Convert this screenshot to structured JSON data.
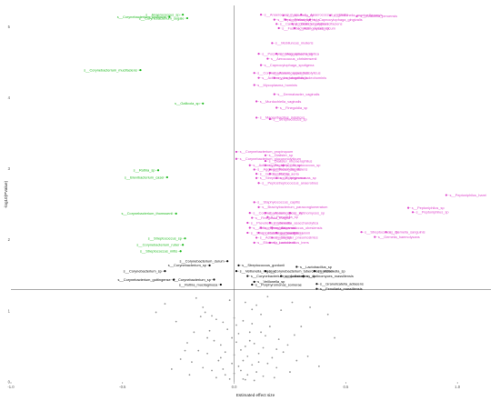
{
  "chart_data": {
    "type": "scatter",
    "title": "",
    "xlabel": "Estimated effect size",
    "ylabel": "-log10(PValue)",
    "xlim": [
      -1.0,
      1.15
    ],
    "ylim": [
      0,
      5.3
    ],
    "x_ticks": [
      -1.0,
      -0.5,
      0.0,
      0.5,
      1.0
    ],
    "x_tick_labels": [
      "-1.0",
      "-0.5",
      "0.0",
      "0.5",
      "1.0"
    ],
    "y_ticks": [
      0,
      1,
      2,
      3,
      4,
      5
    ],
    "y_tick_labels": [
      "0",
      "1",
      "2",
      "3",
      "4",
      "5"
    ],
    "grid": false,
    "reference_lines": [
      {
        "axis": "y",
        "value": 1.3
      },
      {
        "axis": "x",
        "value": 0
      }
    ],
    "colors": {
      "negative": "#22bb22",
      "positive": "#dd44cc",
      "nonsignificant": "#111111",
      "points": "#999999",
      "lines": "#555555"
    },
    "labeled_points": [
      {
        "label": "s__Corynebacterium_fusiforme",
        "x": -0.29,
        "y": 5.14,
        "group": "negative"
      },
      {
        "label": "s__Anaerococcus_sp",
        "x": -0.23,
        "y": 5.17,
        "group": "negative"
      },
      {
        "label": "s__Corynebacterium_segale",
        "x": -0.21,
        "y": 5.12,
        "group": "negative"
      },
      {
        "label": "s__Corynebacterium_mucifaciens",
        "x": -0.42,
        "y": 4.39,
        "group": "negative"
      },
      {
        "label": "s__Gallicola_sp",
        "x": -0.14,
        "y": 3.92,
        "group": "negative"
      },
      {
        "label": "s__Rothia_sp",
        "x": -0.34,
        "y": 2.98,
        "group": "negative"
      },
      {
        "label": "s__Brevibacterium_casei",
        "x": -0.3,
        "y": 2.88,
        "group": "negative"
      },
      {
        "label": "s__Corynebacterium_thomssenii",
        "x": -0.26,
        "y": 2.37,
        "group": "negative"
      },
      {
        "label": "s__Streptococcus_sp",
        "x": -0.22,
        "y": 2.02,
        "group": "negative"
      },
      {
        "label": "s__Corynebacterium_ruber",
        "x": -0.23,
        "y": 1.93,
        "group": "negative"
      },
      {
        "label": "s__Streptococcus_mitis",
        "x": -0.24,
        "y": 1.84,
        "group": "negative"
      },
      {
        "label": "s__Anaerococcus_sp",
        "x": 0.12,
        "y": 5.17,
        "group": "positive"
      },
      {
        "label": "s__Veillonella_sp",
        "x": 0.22,
        "y": 5.16,
        "group": "positive"
      },
      {
        "label": "s__Anaerococcus_vaginalis",
        "x": 0.3,
        "y": 5.17,
        "group": "positive"
      },
      {
        "label": "s__Veillonella_montpellierensis",
        "x": 0.43,
        "y": 5.16,
        "group": "positive"
      },
      {
        "label": "s__Ezakiella_peruensis",
        "x": 0.55,
        "y": 5.15,
        "group": "positive"
      },
      {
        "label": "s__Peptoniphilus_sp",
        "x": 0.18,
        "y": 5.1,
        "group": "positive"
      },
      {
        "label": "s__Prevotella_bivia",
        "x": 0.23,
        "y": 5.1,
        "group": "positive"
      },
      {
        "label": "s__Capnocytophaga_gingivalis",
        "x": 0.34,
        "y": 5.1,
        "group": "positive"
      },
      {
        "label": "s__Campylobacter_ureolyticus",
        "x": 0.19,
        "y": 5.04,
        "group": "positive"
      },
      {
        "label": "s__Dialister_propionicifaciens",
        "x": 0.26,
        "y": 5.04,
        "group": "positive"
      },
      {
        "label": "s__Fusobacterium_periodonticum",
        "x": 0.2,
        "y": 4.98,
        "group": "positive"
      },
      {
        "label": "s__Actinomyces_sp",
        "x": 0.27,
        "y": 4.98,
        "group": "positive"
      },
      {
        "label": "s__Mobiluncus_mulieris",
        "x": 0.17,
        "y": 4.77,
        "group": "positive"
      },
      {
        "label": "s__Porphyromonas_asaccharolytica",
        "x": 0.11,
        "y": 4.62,
        "group": "positive"
      },
      {
        "label": "s__Megasphaera_sp",
        "x": 0.19,
        "y": 4.62,
        "group": "positive"
      },
      {
        "label": "s__Aerococcus_christensenii",
        "x": 0.15,
        "y": 4.55,
        "group": "positive"
      },
      {
        "label": "s__Capnocytophaga_sputigena",
        "x": 0.12,
        "y": 4.46,
        "group": "positive"
      },
      {
        "label": "s__Corynebacterium_appendicis",
        "x": 0.09,
        "y": 4.35,
        "group": "positive"
      },
      {
        "label": "s__Anaerococcus_lactolyticus",
        "x": 0.16,
        "y": 4.35,
        "group": "positive"
      },
      {
        "label": "s__Actinomyces_urogenitalis",
        "x": 0.11,
        "y": 4.28,
        "group": "positive"
      },
      {
        "label": "s__Lactobacillus_coleohominis",
        "x": 0.18,
        "y": 4.28,
        "group": "positive"
      },
      {
        "label": "s__Mycoplasma_hominis",
        "x": 0.09,
        "y": 4.18,
        "group": "positive"
      },
      {
        "label": "s__Dermabacter_vaginalis",
        "x": 0.18,
        "y": 4.05,
        "group": "positive"
      },
      {
        "label": "s__Murdochiella_vaginalis",
        "x": 0.1,
        "y": 3.95,
        "group": "positive"
      },
      {
        "label": "s__Finegoldia_sp",
        "x": 0.19,
        "y": 3.86,
        "group": "positive"
      },
      {
        "label": "s__Mageeibacillus_indolicus",
        "x": 0.1,
        "y": 3.72,
        "group": "positive"
      },
      {
        "label": "s__Streptococcus_sp",
        "x": 0.16,
        "y": 3.7,
        "group": "positive"
      },
      {
        "label": "s__Corynebacterium_propinquum",
        "x": 0.01,
        "y": 3.24,
        "group": "positive"
      },
      {
        "label": "s__Dialister_sp",
        "x": 0.14,
        "y": 3.19,
        "group": "positive"
      },
      {
        "label": "s__Corynebacterium_glucuronolyticum",
        "x": 0.01,
        "y": 3.14,
        "group": "positive"
      },
      {
        "label": "s__Dialister_micraerophilus",
        "x": 0.14,
        "y": 3.11,
        "group": "positive"
      },
      {
        "label": "s__Actinomyces_sp",
        "x": 0.07,
        "y": 3.05,
        "group": "positive"
      },
      {
        "label": "s__Peptoniphilus_sp",
        "x": 0.14,
        "y": 3.05,
        "group": "positive"
      },
      {
        "label": "s__Streptococcus_sp",
        "x": 0.22,
        "y": 3.05,
        "group": "positive"
      },
      {
        "label": "s__Aggregatibacter_segnis",
        "x": 0.09,
        "y": 2.99,
        "group": "positive"
      },
      {
        "label": "s__Prevotella_disiens",
        "x": 0.16,
        "y": 2.99,
        "group": "positive"
      },
      {
        "label": "s__Gardnerella_sp",
        "x": 0.1,
        "y": 2.93,
        "group": "positive"
      },
      {
        "label": "s__Rothia_aeria",
        "x": 0.16,
        "y": 2.93,
        "group": "positive"
      },
      {
        "label": "s__Streptococcus_anginosus",
        "x": 0.1,
        "y": 2.87,
        "group": "positive"
      },
      {
        "label": "s__Porphyromonas_sp",
        "x": 0.19,
        "y": 2.87,
        "group": "positive"
      },
      {
        "label": "s__Peptostreptococcus_anaerobius",
        "x": 0.11,
        "y": 2.8,
        "group": "positive"
      },
      {
        "label": "s__Staphylococcus_capitis",
        "x": 0.09,
        "y": 2.53,
        "group": "positive"
      },
      {
        "label": "s__Brachybacterium_paraconglomeratum",
        "x": 0.11,
        "y": 2.46,
        "group": "positive"
      },
      {
        "label": "s__Corynebacterium_sp",
        "x": 0.07,
        "y": 2.38,
        "group": "positive"
      },
      {
        "label": "s__Anaerococcus_sp",
        "x": 0.14,
        "y": 2.38,
        "group": "positive"
      },
      {
        "label": "s__Actinomyces_sp",
        "x": 0.25,
        "y": 2.38,
        "group": "positive"
      },
      {
        "label": "s__Peptoniphilus_harei",
        "x": 0.95,
        "y": 2.63,
        "group": "positive"
      },
      {
        "label": "s__Finegoldia_magna",
        "x": 0.08,
        "y": 2.31,
        "group": "positive"
      },
      {
        "label": "s__Prevotella_sp",
        "x": 0.15,
        "y": 2.32,
        "group": "positive"
      },
      {
        "label": "s__Peptoniphilus_sp",
        "x": 0.78,
        "y": 2.45,
        "group": "positive"
      },
      {
        "label": "s__Prevotella_intermedia",
        "x": 0.06,
        "y": 2.24,
        "group": "positive"
      },
      {
        "label": "s__Gemella_asaccharolytica",
        "x": 0.16,
        "y": 2.24,
        "group": "positive"
      },
      {
        "label": "s__Peptoniphilus_sp",
        "x": 0.8,
        "y": 2.39,
        "group": "positive"
      },
      {
        "label": "s__Actinomyces_turicensis",
        "x": 0.07,
        "y": 2.17,
        "group": "positive"
      },
      {
        "label": "s__Prevotella_amnii",
        "x": 0.12,
        "y": 2.17,
        "group": "positive"
      },
      {
        "label": "s__Anaerococcus_obesiensis",
        "x": 0.17,
        "y": 2.17,
        "group": "positive"
      },
      {
        "label": "s__Streptococcus_parasanguinis",
        "x": 0.06,
        "y": 2.1,
        "group": "positive"
      },
      {
        "label": "s__Mobiluncus_curtisii",
        "x": 0.11,
        "y": 2.1,
        "group": "positive"
      },
      {
        "label": "s__Sneathia_amnii",
        "x": 0.19,
        "y": 2.1,
        "group": "positive"
      },
      {
        "label": "s__Streptococcus_sp",
        "x": 0.57,
        "y": 2.11,
        "group": "positive"
      },
      {
        "label": "s__Gemella_sanguinis",
        "x": 0.68,
        "y": 2.11,
        "group": "positive"
      },
      {
        "label": "s__Actinomyces_sp",
        "x": 0.1,
        "y": 2.03,
        "group": "positive"
      },
      {
        "label": "s__Dialister_pneumosintes",
        "x": 0.17,
        "y": 2.03,
        "group": "positive"
      },
      {
        "label": "s__Gemella_haemolysans",
        "x": 0.63,
        "y": 2.04,
        "group": "positive"
      },
      {
        "label": "s__Eikenella_corrodens",
        "x": 0.09,
        "y": 1.96,
        "group": "positive"
      },
      {
        "label": "s__Lactobacillus_iners",
        "x": 0.16,
        "y": 1.96,
        "group": "positive"
      },
      {
        "label": "s__Corynebacterium_durum",
        "x": -0.03,
        "y": 1.7,
        "group": "nonsignificant"
      },
      {
        "label": "s__Corynebacterium_sp",
        "x": -0.11,
        "y": 1.64,
        "group": "nonsignificant"
      },
      {
        "label": "s__Streptococcus_gordonii",
        "x": 0.02,
        "y": 1.64,
        "group": "nonsignificant"
      },
      {
        "label": "s__Lactobacillus_sp",
        "x": 0.28,
        "y": 1.62,
        "group": "nonsignificant"
      },
      {
        "label": "s__Veillonella_sp",
        "x": 0.36,
        "y": 1.56,
        "group": "nonsignificant"
      },
      {
        "label": "s__Corynebacterium_sp",
        "x": -0.31,
        "y": 1.56,
        "group": "nonsignificant"
      },
      {
        "label": "s__Veillonella_rogosae",
        "x": 0.01,
        "y": 1.56,
        "group": "nonsignificant"
      },
      {
        "label": "s__Corynebacterium_tuberculostearicum",
        "x": 0.14,
        "y": 1.56,
        "group": "nonsignificant"
      },
      {
        "label": "s__Actinomyces_massiliensis",
        "x": 0.31,
        "y": 1.49,
        "group": "nonsignificant"
      },
      {
        "label": "s__Corynebacterium_amycolatum",
        "x": 0.06,
        "y": 1.49,
        "group": "nonsignificant"
      },
      {
        "label": "s__Actinomyces_sp",
        "x": 0.21,
        "y": 1.49,
        "group": "nonsignificant"
      },
      {
        "label": "s__Corynebacterium_gottingense",
        "x": -0.27,
        "y": 1.44,
        "group": "nonsignificant"
      },
      {
        "label": "s__Corynebacterium_sp",
        "x": -0.09,
        "y": 1.44,
        "group": "nonsignificant"
      },
      {
        "label": "s__Veillonella_sp",
        "x": 0.09,
        "y": 1.41,
        "group": "nonsignificant"
      },
      {
        "label": "s__Rothia_mucilaginosa",
        "x": -0.06,
        "y": 1.37,
        "group": "nonsignificant"
      },
      {
        "label": "s__Porphyromonas_somerae",
        "x": 0.08,
        "y": 1.37,
        "group": "nonsignificant"
      },
      {
        "label": "s__Granulicatella_adiacens",
        "x": 0.37,
        "y": 1.38,
        "group": "nonsignificant"
      },
      {
        "label": "s__Fenollaria_massiliensis",
        "x": 0.37,
        "y": 1.31,
        "group": "nonsignificant"
      }
    ],
    "background_points": [
      [
        -0.31,
        1.1
      ],
      [
        -0.14,
        1.05
      ],
      [
        -0.13,
        0.98
      ],
      [
        -0.1,
        0.93
      ],
      [
        -0.02,
        1.15
      ],
      [
        0.05,
        1.12
      ],
      [
        0.1,
        1.08
      ],
      [
        -0.08,
        0.88
      ],
      [
        -0.05,
        0.84
      ],
      [
        0.0,
        0.9
      ],
      [
        0.04,
        0.86
      ],
      [
        0.08,
        0.82
      ],
      [
        0.12,
        0.95
      ],
      [
        0.16,
        0.78
      ],
      [
        -0.18,
        0.7
      ],
      [
        -0.11,
        0.72
      ],
      [
        -0.03,
        0.74
      ],
      [
        0.02,
        0.68
      ],
      [
        0.07,
        0.7
      ],
      [
        0.14,
        0.65
      ],
      [
        0.2,
        0.6
      ],
      [
        -0.21,
        0.55
      ],
      [
        -0.09,
        0.58
      ],
      [
        -0.06,
        0.52
      ],
      [
        0.01,
        0.56
      ],
      [
        0.05,
        0.5
      ],
      [
        0.09,
        0.54
      ],
      [
        0.13,
        0.48
      ],
      [
        0.24,
        0.52
      ],
      [
        -0.16,
        0.44
      ],
      [
        -0.12,
        0.4
      ],
      [
        -0.04,
        0.42
      ],
      [
        0.0,
        0.38
      ],
      [
        0.03,
        0.45
      ],
      [
        0.06,
        0.36
      ],
      [
        0.11,
        0.4
      ],
      [
        0.17,
        0.34
      ],
      [
        0.22,
        0.42
      ],
      [
        0.28,
        0.3
      ],
      [
        -0.24,
        0.32
      ],
      [
        -0.19,
        0.28
      ],
      [
        -0.07,
        0.3
      ],
      [
        -0.01,
        0.26
      ],
      [
        0.02,
        0.22
      ],
      [
        0.04,
        0.3
      ],
      [
        0.08,
        0.24
      ],
      [
        0.15,
        0.26
      ],
      [
        0.19,
        0.2
      ],
      [
        0.33,
        0.36
      ],
      [
        -0.14,
        0.2
      ],
      [
        -0.1,
        0.16
      ],
      [
        -0.05,
        0.18
      ],
      [
        0.0,
        0.12
      ],
      [
        0.03,
        0.16
      ],
      [
        0.06,
        0.1
      ],
      [
        0.1,
        0.14
      ],
      [
        0.13,
        0.08
      ],
      [
        0.25,
        0.14
      ],
      [
        -0.28,
        0.18
      ],
      [
        -0.2,
        0.1
      ],
      [
        -0.08,
        0.06
      ],
      [
        -0.02,
        0.04
      ],
      [
        0.05,
        0.03
      ],
      [
        0.09,
        0.02
      ],
      [
        0.18,
        0.06
      ],
      [
        0.38,
        0.22
      ],
      [
        0.45,
        0.62
      ],
      [
        0.3,
        0.78
      ],
      [
        -0.26,
        0.85
      ],
      [
        -0.35,
        0.98
      ],
      [
        0.42,
        0.95
      ],
      [
        0.21,
        1.01
      ],
      [
        -0.17,
        1.18
      ],
      [
        0.26,
        1.12
      ],
      [
        -0.01,
        0.62
      ],
      [
        0.01,
        0.8
      ],
      [
        0.11,
        0.28
      ],
      [
        -0.04,
        0.1
      ],
      [
        0.07,
        0.58
      ],
      [
        0.15,
        1.2
      ],
      [
        -0.12,
        0.62
      ],
      [
        0.34,
        1.05
      ],
      [
        -0.22,
        0.44
      ],
      [
        0.12,
        0.7
      ],
      [
        0.04,
        0.04
      ],
      [
        -0.06,
        0.34
      ],
      [
        0.19,
        0.46
      ],
      [
        0.27,
        0.66
      ],
      [
        -0.15,
        0.92
      ],
      [
        0.08,
        1.02
      ]
    ]
  }
}
